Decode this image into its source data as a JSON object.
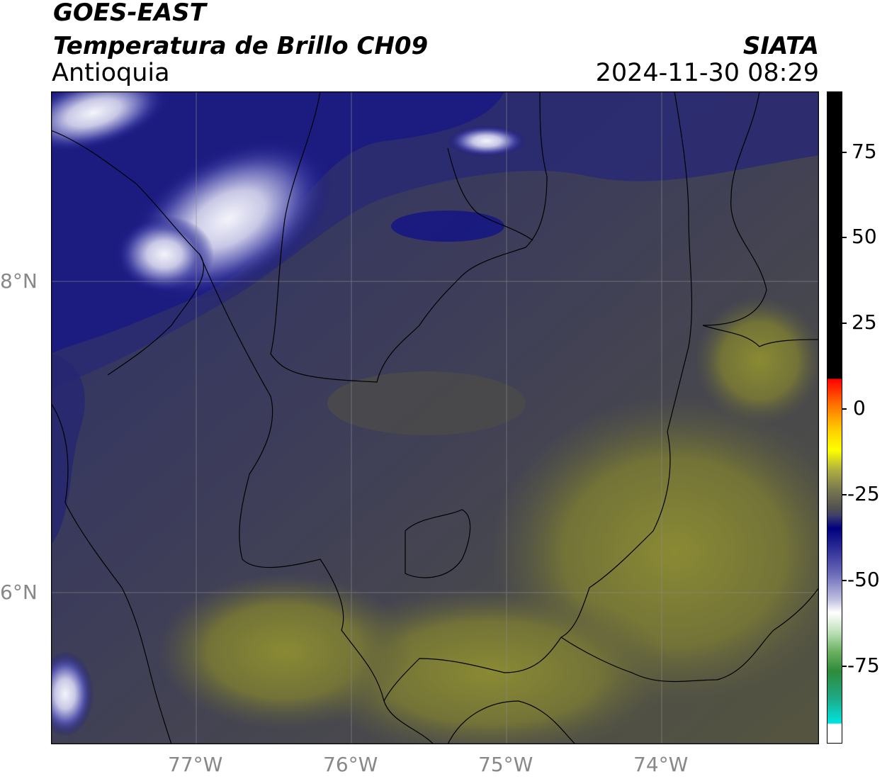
{
  "header": {
    "satellite": "GOES-EAST",
    "product": "Temperatura de Brillo CH09",
    "region": "Antioquia",
    "organization": "SIATA",
    "datetime": "2024-11-30 08:29"
  },
  "map": {
    "lat_labels": [
      "8°N",
      "6°N"
    ],
    "lon_labels": [
      "77°W",
      "76°W",
      "75°W",
      "74°W"
    ]
  },
  "colorbar": {
    "ticks": [
      "75",
      "50",
      "25",
      "0",
      "-25",
      "-50",
      "-75"
    ],
    "colors": {
      "hot": "#000000",
      "red": "#ff2000",
      "yellow": "#ffff00",
      "olive": "#7a7a30",
      "gray": "#505050",
      "navy": "#000080",
      "white": "#ffffff",
      "green": "#2e8b3a",
      "cyan": "#00e5e0"
    }
  }
}
